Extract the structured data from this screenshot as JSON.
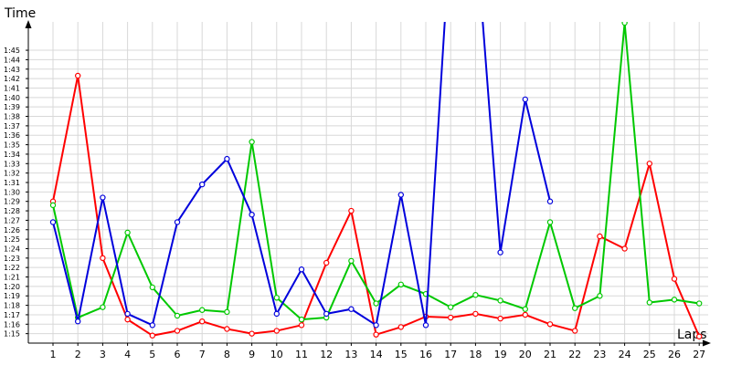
{
  "chart_data": {
    "type": "line",
    "xlabel": "Laps",
    "ylabel": "Time",
    "x": [
      1,
      2,
      3,
      4,
      5,
      6,
      7,
      8,
      9,
      10,
      11,
      12,
      13,
      14,
      15,
      16,
      17,
      18,
      19,
      20,
      21,
      22,
      23,
      24,
      25,
      26,
      27
    ],
    "y_ticks": [
      "1:15",
      "1:16",
      "1:17",
      "1:18",
      "1:19",
      "1:20",
      "1:21",
      "1:22",
      "1:23",
      "1:24",
      "1:25",
      "1:26",
      "1:27",
      "1:28",
      "1:29",
      "1:30",
      "1:31",
      "1:32",
      "1:33",
      "1:34",
      "1:35",
      "1:36",
      "1:37",
      "1:38",
      "1:39",
      "1:40",
      "1:41",
      "1:42",
      "1:43",
      "1:44",
      "1:45"
    ],
    "ylim": [
      "1:14",
      "1:48"
    ],
    "grid": true,
    "series": [
      {
        "color": "#ff0000",
        "values": [
          "1:29",
          "1:42.3",
          "1:23",
          "1:16.5",
          "1:14.8",
          "1:15.3",
          "1:16.3",
          "1:15.5",
          "1:15",
          "1:15.3",
          "1:15.9",
          "1:22.5",
          "1:28",
          "1:14.9",
          "1:15.7",
          "1:16.8",
          "1:16.7",
          "1:17.1",
          "1:16.6",
          "1:17",
          "1:16",
          "1:15.3",
          "1:25.3",
          "1:24",
          "1:33",
          "1:20.8",
          "1:14.7"
        ]
      },
      {
        "color": "#00c800",
        "values": [
          "1:28.6",
          "1:16.7",
          "1:17.8",
          "1:25.7",
          "1:19.9",
          "1:16.9",
          "1:17.5",
          "1:17.3",
          "1:35.3",
          "1:18.8",
          "1:16.5",
          "1:16.7",
          "1:22.7",
          "1:18.2",
          "1:20.2",
          "1:19.2",
          "1:17.8",
          "1:19.1",
          "1:18.5",
          "1:17.6",
          "1:26.8",
          "1:17.7",
          "1:19",
          "1:47.9",
          "1:18.3",
          "1:18.6",
          "1:18.2"
        ]
      },
      {
        "color": "#0000dc",
        "values": [
          "1:26.8",
          "1:16.3",
          "1:29.4",
          "1:17.1",
          "1:15.9",
          "1:26.8",
          "1:30.8",
          "1:33.5",
          "1:27.6",
          "1:17.1",
          "1:21.8",
          "1:17.1",
          "1:17.6",
          "1:15.9",
          "1:29.7",
          "1:15.9",
          "1:58",
          "1:58",
          "1:23.6",
          "1:39.8",
          "1:29",
          null,
          null,
          null,
          null,
          null,
          null
        ]
      }
    ]
  }
}
